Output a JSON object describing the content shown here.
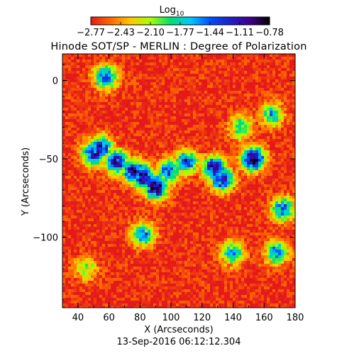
{
  "chart_data": {
    "type": "heatmap",
    "title": "Hinode SOT/SP - MERLIN : Degree of Polarization",
    "xlabel": "X (Arcseconds)",
    "ylabel": "Y (Arcseconds)",
    "footer": "13-Sep-2016 06:12:12.304",
    "xlim": [
      30,
      180
    ],
    "ylim": [
      -145,
      17
    ],
    "xticks": [
      40,
      60,
      80,
      100,
      120,
      140,
      160,
      180
    ],
    "xtick_labels": [
      "40",
      "60",
      "80",
      "100",
      "120",
      "140",
      "160",
      "180"
    ],
    "yticks": [
      0,
      -50,
      -100
    ],
    "ytick_labels": [
      "0",
      "−50",
      "−100"
    ],
    "colorbar": {
      "label_base": "Log",
      "label_sub": "10",
      "scale": "log10",
      "range": [
        -2.77,
        -0.78
      ],
      "ticks": [
        "−2.77",
        "−2.43",
        "−2.10",
        "−1.77",
        "−1.44",
        "−1.11",
        "−0.78"
      ],
      "colormap": [
        "#e41a1a",
        "#ff6a00",
        "#ffc800",
        "#a8ff00",
        "#00e070",
        "#00c8ff",
        "#0050ff",
        "#2020c8",
        "#400090",
        "#000000"
      ]
    },
    "features": [
      {
        "x": 58,
        "y": 2,
        "v": -1.3
      },
      {
        "x": 55,
        "y": -43,
        "v": -1.2
      },
      {
        "x": 50,
        "y": -47,
        "v": -1.1
      },
      {
        "x": 65,
        "y": -52,
        "v": -1.0
      },
      {
        "x": 76,
        "y": -58,
        "v": -1.0
      },
      {
        "x": 82,
        "y": -61,
        "v": -0.95
      },
      {
        "x": 90,
        "y": -68,
        "v": -0.8
      },
      {
        "x": 98,
        "y": -58,
        "v": -1.3
      },
      {
        "x": 110,
        "y": -52,
        "v": -1.3
      },
      {
        "x": 128,
        "y": -56,
        "v": -0.9
      },
      {
        "x": 133,
        "y": -63,
        "v": -1.1
      },
      {
        "x": 153,
        "y": -50,
        "v": -0.8
      },
      {
        "x": 172,
        "y": -82,
        "v": -1.4
      },
      {
        "x": 168,
        "y": -110,
        "v": -1.5
      },
      {
        "x": 140,
        "y": -110,
        "v": -1.6
      },
      {
        "x": 82,
        "y": -98,
        "v": -1.5
      },
      {
        "x": 165,
        "y": -22,
        "v": -1.7
      },
      {
        "x": 45,
        "y": -120,
        "v": -2.0
      },
      {
        "x": 145,
        "y": -30,
        "v": -1.8
      }
    ]
  }
}
